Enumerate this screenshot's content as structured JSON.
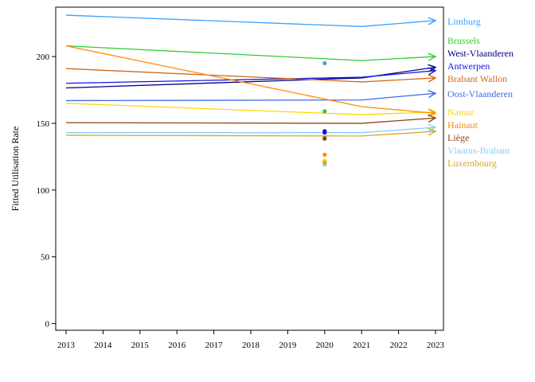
{
  "chart_data": {
    "type": "line",
    "title": "",
    "xlabel": "",
    "ylabel": "Fitted Utilisation Rate",
    "x": [
      2013,
      2014,
      2015,
      2016,
      2017,
      2018,
      2019,
      2020,
      2021,
      2022,
      2023
    ],
    "xlim": [
      2013,
      2023
    ],
    "ylim": [
      -5,
      237
    ],
    "yticks": [
      0,
      50,
      100,
      150,
      200
    ],
    "grid": false,
    "legend_placement": "right",
    "series": [
      {
        "name": "Limburg",
        "color": "#3aa0ff",
        "points": [
          [
            2013,
            231
          ],
          [
            2021,
            222.5
          ],
          [
            2023,
            227
          ]
        ],
        "dot2020": 195
      },
      {
        "name": "Brussels",
        "color": "#33cc33",
        "points": [
          [
            2013,
            208
          ],
          [
            2021,
            197
          ],
          [
            2023,
            200
          ]
        ],
        "dot2020": 159
      },
      {
        "name": "West-Vlaanderen",
        "color": "#000080",
        "points": [
          [
            2013,
            176.5
          ],
          [
            2021,
            184
          ],
          [
            2023,
            192
          ]
        ],
        "dot2020": 144
      },
      {
        "name": "Antwerpen",
        "color": "#1414e6",
        "points": [
          [
            2013,
            180
          ],
          [
            2021,
            184.5
          ],
          [
            2023,
            189.5
          ]
        ],
        "dot2020": 143
      },
      {
        "name": "Brabant Wallon",
        "color": "#d2691e",
        "points": [
          [
            2013,
            191
          ],
          [
            2021,
            181
          ],
          [
            2023,
            184
          ]
        ],
        "dot2020": 139
      },
      {
        "name": "Oost-Vlaanderen",
        "color": "#4169e1",
        "points": [
          [
            2013,
            167
          ],
          [
            2021,
            167.5
          ],
          [
            2023,
            172.5
          ]
        ],
        "dot2020": 121
      },
      {
        "name": "Namur",
        "color": "#ffd700",
        "points": [
          [
            2013,
            165
          ],
          [
            2021,
            156.5
          ],
          [
            2023,
            158.5
          ]
        ],
        "dot2020": 122
      },
      {
        "name": "Hainaut",
        "color": "#ff8c00",
        "points": [
          [
            2013,
            208
          ],
          [
            2021,
            162.5
          ],
          [
            2023,
            157.5
          ]
        ],
        "dot2020": 126.5
      },
      {
        "name": "Liège",
        "color": "#8b4513",
        "points": [
          [
            2013,
            150.5
          ],
          [
            2021,
            150
          ],
          [
            2023,
            154
          ]
        ],
        "dot2020": 138.5
      },
      {
        "name": "Vlaams-Brabant",
        "color": "#87cefa",
        "points": [
          [
            2013,
            143
          ],
          [
            2021,
            143
          ],
          [
            2023,
            147
          ]
        ],
        "dot2020": 119
      },
      {
        "name": "Luxembourg",
        "color": "#daa520",
        "points": [
          [
            2013,
            141
          ],
          [
            2021,
            140.5
          ],
          [
            2023,
            144
          ]
        ],
        "dot2020": 120.5
      }
    ]
  }
}
